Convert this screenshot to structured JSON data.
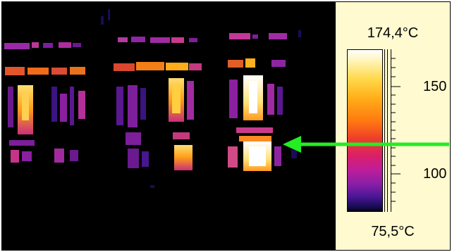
{
  "scale": {
    "max_label": "174,4°C",
    "min_label": "75,5°C",
    "ticks": [
      "150",
      "100"
    ],
    "colormap": "ironbow"
  },
  "image": {
    "subject": "thermal-image-switchgear-cabinets",
    "background_color": "#000000"
  },
  "arrow": {
    "color": "#22ee22",
    "icon": "arrow-left-icon"
  },
  "panel": {
    "background_color": "#fffad0"
  }
}
